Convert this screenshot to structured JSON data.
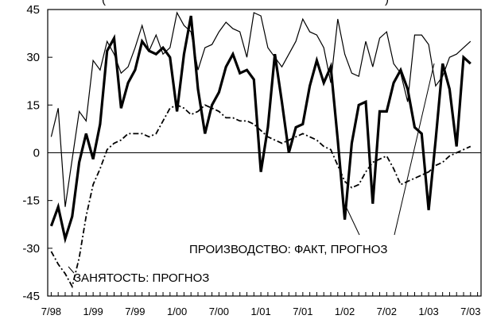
{
  "chart_data": {
    "type": "line",
    "title": "",
    "title_partial": "(",
    "title_partial_end": ")",
    "xlabel": "",
    "ylabel": "",
    "ylim": [
      -45,
      45
    ],
    "y_ticks": [
      45,
      30,
      15,
      0,
      -15,
      -30,
      -45
    ],
    "x_tick_labels": [
      "7/98",
      "1/99",
      "7/99",
      "1/00",
      "7/00",
      "1/01",
      "7/01",
      "1/02",
      "7/02",
      "1/03",
      "7/03"
    ],
    "x_tick_positions": [
      0,
      6,
      12,
      18,
      24,
      30,
      36,
      42,
      48,
      54,
      60
    ],
    "x_range": [
      -0.5,
      61.5
    ],
    "grid": false,
    "annotations": [
      {
        "id": "production",
        "text": "ПРОИЗВОДСТВО: ФАКТ, ПРОГНОЗ"
      },
      {
        "id": "employment",
        "text": "ЗАНЯТОСТЬ: ПРОГНОЗ"
      }
    ],
    "series": [
      {
        "id": "production_forecast",
        "style": "thin",
        "x": [
          0,
          1,
          2,
          3,
          4,
          5,
          6,
          7,
          8,
          9,
          10,
          11,
          12,
          13,
          14,
          15,
          16,
          17,
          18,
          19,
          20,
          21,
          22,
          23,
          24,
          25,
          26,
          27,
          28,
          29,
          30,
          31,
          32,
          33,
          34,
          35,
          36,
          37,
          38,
          39,
          40,
          41,
          42,
          43,
          44,
          45,
          46,
          47,
          48,
          49,
          50,
          51,
          52,
          53,
          54,
          55,
          56,
          57,
          58,
          59,
          60
        ],
        "values": [
          5,
          14,
          -17,
          -2,
          13,
          10,
          29,
          26,
          35,
          31,
          25,
          27,
          33,
          40,
          32,
          37,
          31,
          33,
          44,
          40,
          38,
          26,
          33,
          34,
          38,
          41,
          39,
          38,
          30,
          44,
          43,
          33,
          30,
          27,
          31,
          35,
          42,
          38,
          37,
          33,
          22,
          42,
          31,
          25,
          24,
          35,
          27,
          36,
          38,
          28,
          25,
          16,
          37,
          37,
          34,
          21,
          24,
          30,
          31,
          33,
          35
        ]
      },
      {
        "id": "production_fact",
        "style": "thick",
        "x": [
          0,
          1,
          2,
          3,
          4,
          5,
          6,
          7,
          8,
          9,
          10,
          11,
          12,
          13,
          14,
          15,
          16,
          17,
          18,
          19,
          20,
          21,
          22,
          23,
          24,
          25,
          26,
          27,
          28,
          29,
          30,
          31,
          32,
          33,
          34,
          35,
          36,
          37,
          38,
          39,
          40,
          41,
          42,
          43,
          44,
          45,
          46,
          47,
          48,
          49,
          50,
          51,
          52,
          53,
          54,
          55,
          56,
          57,
          58,
          59,
          60
        ],
        "values": [
          -23,
          -17,
          -27,
          -20,
          -3,
          6,
          -2,
          9,
          32,
          36,
          14,
          22,
          26,
          35,
          32,
          31,
          33,
          30,
          13,
          31,
          43,
          20,
          6,
          15,
          19,
          27,
          31,
          25,
          26,
          23,
          -6,
          8,
          31,
          16,
          0,
          8,
          9,
          21,
          29,
          22,
          27,
          4,
          -21,
          3,
          15,
          16,
          -16,
          13,
          13,
          22,
          26,
          20,
          8,
          6,
          -18,
          4,
          28,
          20,
          2,
          30,
          28
        ]
      },
      {
        "id": "employment_forecast",
        "style": "dashdot",
        "x": [
          0,
          1,
          2,
          3,
          4,
          5,
          6,
          7,
          8,
          9,
          10,
          11,
          12,
          13,
          14,
          15,
          16,
          17,
          18,
          19,
          20,
          21,
          22,
          23,
          24,
          25,
          26,
          27,
          28,
          29,
          30,
          31,
          32,
          33,
          34,
          35,
          36,
          37,
          38,
          39,
          40,
          41,
          42,
          43,
          44,
          45,
          46,
          47,
          48,
          49,
          50,
          51,
          52,
          53,
          54,
          55,
          56,
          57,
          58,
          59,
          60
        ],
        "values": [
          -31,
          -35,
          -38,
          -42,
          -33,
          -20,
          -10,
          -5,
          1,
          3,
          4,
          6,
          6,
          6,
          5,
          6,
          10,
          14,
          15,
          14,
          12,
          13,
          15,
          14,
          13,
          11,
          11,
          10,
          10,
          9,
          7,
          5,
          4,
          3,
          4,
          5,
          6,
          5,
          4,
          2,
          1,
          -4,
          -9,
          -11,
          -10,
          -6,
          -3,
          -2,
          -1,
          -5,
          -10,
          -9,
          -8,
          -7,
          -6,
          -4,
          -3,
          -1,
          0,
          1,
          2
        ]
      }
    ]
  }
}
